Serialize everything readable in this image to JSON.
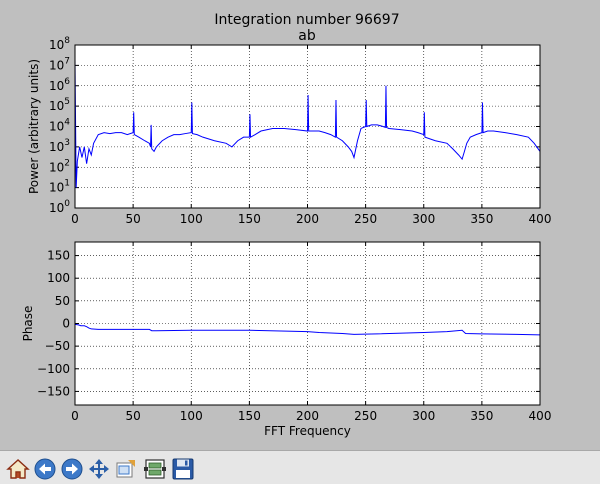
{
  "window": {
    "title_line1": "Integration number 96697",
    "title_line2": "ab"
  },
  "chart_data": [
    {
      "type": "line",
      "title": "Integration number 96697",
      "subtitle": "ab",
      "xlabel": "",
      "ylabel": "Power (arbitrary units)",
      "xlim": [
        0,
        400
      ],
      "ylim": [
        1,
        100000000
      ],
      "yscale": "log",
      "grid": true,
      "x_ticks": [
        "0",
        "50",
        "100",
        "150",
        "200",
        "250",
        "300",
        "350",
        "400"
      ],
      "y_ticks": [
        "10^0",
        "10^1",
        "10^2",
        "10^3",
        "10^4",
        "10^5",
        "10^6",
        "10^7",
        "10^8"
      ],
      "series": [
        {
          "color": "#0000ff",
          "x": [
            0,
            1,
            2,
            4,
            6,
            8,
            10,
            12,
            14,
            16,
            20,
            25,
            30,
            35,
            40,
            45,
            50,
            50.5,
            51,
            55,
            60,
            64,
            65,
            65.5,
            66,
            68,
            70,
            75,
            80,
            85,
            90,
            95,
            100,
            100.5,
            101,
            105,
            110,
            120,
            130,
            135,
            140,
            145,
            150,
            150.5,
            151,
            155,
            160,
            170,
            180,
            190,
            200,
            200.5,
            201,
            205,
            210,
            215,
            220,
            224,
            224.5,
            225,
            230,
            235,
            238,
            240,
            243,
            246,
            250,
            250.5,
            251,
            255,
            260,
            265,
            267,
            267.5,
            268,
            270,
            280,
            290,
            295,
            300,
            300.5,
            301,
            305,
            310,
            320,
            325,
            330,
            333,
            335,
            337,
            340,
            345,
            350,
            350.5,
            351,
            355,
            360,
            370,
            380,
            390,
            395,
            400
          ],
          "y": [
            20000000,
            10,
            200,
            1000,
            300,
            1000,
            150,
            800,
            400,
            1500,
            4000,
            5000,
            4500,
            5000,
            5000,
            4000,
            5000,
            50000,
            4000,
            3000,
            2000,
            1500,
            1000,
            12000,
            800,
            600,
            1000,
            2000,
            3000,
            4000,
            4000,
            4500,
            5000,
            150000,
            4500,
            4000,
            3000,
            2000,
            1500,
            1000,
            2000,
            3000,
            3000,
            40000,
            3000,
            4000,
            6000,
            8000,
            8000,
            7000,
            6000,
            350000,
            6000,
            6000,
            6000,
            5000,
            4000,
            3000,
            200000,
            3000,
            2000,
            1000,
            600,
            300,
            2000,
            8000,
            10000,
            200000,
            10000,
            12000,
            12000,
            10000,
            9000,
            1000000,
            9000,
            8000,
            7000,
            6000,
            5000,
            4000,
            50000,
            3000,
            2500,
            2000,
            1500,
            800,
            400,
            250,
            600,
            1500,
            3000,
            4000,
            5000,
            150000,
            5000,
            6000,
            6000,
            5000,
            4000,
            3000,
            1500,
            600
          ]
        }
      ]
    },
    {
      "type": "line",
      "title": "",
      "xlabel": "FFT Frequency",
      "ylabel": "Phase",
      "xlim": [
        0,
        400
      ],
      "ylim": [
        -180,
        180
      ],
      "grid": true,
      "x_ticks": [
        "0",
        "50",
        "100",
        "150",
        "200",
        "250",
        "300",
        "350",
        "400"
      ],
      "y_ticks": [
        "−150",
        "−100",
        "−50",
        "0",
        "50",
        "100",
        "150"
      ],
      "series": [
        {
          "color": "#0000ff",
          "x": [
            0,
            3,
            5,
            8,
            10,
            12,
            14,
            20,
            30,
            50,
            64,
            66,
            70,
            100,
            120,
            150,
            200,
            210,
            230,
            240,
            260,
            300,
            320,
            333,
            336,
            350,
            380,
            400
          ],
          "y": [
            -2,
            -3,
            -5,
            -5,
            -7,
            -10,
            -12,
            -13,
            -13,
            -13,
            -13,
            -16,
            -16,
            -15,
            -15,
            -15,
            -18,
            -20,
            -22,
            -24,
            -23,
            -20,
            -18,
            -15,
            -22,
            -23,
            -24,
            -25
          ]
        }
      ]
    }
  ],
  "toolbar": [
    {
      "name": "home-button",
      "icon": "home-icon"
    },
    {
      "name": "back-button",
      "icon": "back-arrow-icon"
    },
    {
      "name": "forward-button",
      "icon": "forward-arrow-icon"
    },
    {
      "name": "pan-button",
      "icon": "pan-arrows-icon"
    },
    {
      "name": "zoom-button",
      "icon": "zoom-rect-icon"
    },
    {
      "name": "subplots-button",
      "icon": "subplots-config-icon"
    },
    {
      "name": "save-button",
      "icon": "floppy-disk-icon"
    }
  ]
}
